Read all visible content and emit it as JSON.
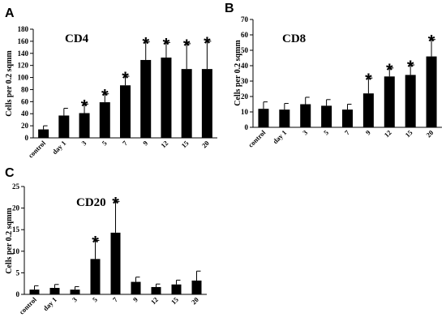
{
  "chart_data": [
    {
      "type": "bar",
      "panel": "A",
      "title": "CD4",
      "ylabel": "Cells per 0.2 sqmm",
      "xlabel": "",
      "ylim": [
        0,
        180
      ],
      "yticks": [
        0,
        20,
        40,
        60,
        80,
        100,
        120,
        140,
        160,
        180
      ],
      "categories": [
        "control",
        "day 1",
        "3",
        "5",
        "7",
        "9",
        "12",
        "15",
        "20"
      ],
      "values": [
        14,
        37,
        41,
        59,
        87,
        129,
        133,
        114,
        114
      ],
      "errors": [
        6,
        12,
        15,
        14,
        15,
        30,
        25,
        42,
        46
      ],
      "significant": [
        false,
        false,
        true,
        true,
        true,
        true,
        true,
        true,
        true
      ],
      "marker": "*",
      "color": "#000000"
    },
    {
      "type": "bar",
      "panel": "B",
      "title": "CD8",
      "ylabel": "Cells per 0.2 sqmm",
      "xlabel": "",
      "ylim": [
        0,
        70
      ],
      "yticks": [
        0,
        10,
        20,
        30,
        40,
        50,
        60,
        70
      ],
      "categories": [
        "control",
        "day 1",
        "3",
        "5",
        "7",
        "9",
        "12",
        "15",
        "20"
      ],
      "values": [
        12,
        11.5,
        15,
        14,
        11.5,
        22,
        33,
        34,
        46
      ],
      "errors": [
        4.5,
        4,
        4.5,
        4,
        3.5,
        10,
        5.5,
        6.5,
        11
      ],
      "significant": [
        false,
        false,
        false,
        false,
        false,
        true,
        true,
        true,
        true
      ],
      "marker": "*",
      "color": "#000000"
    },
    {
      "type": "bar",
      "panel": "C",
      "title": "CD20",
      "ylabel": "Cells per 0.2 sqmm",
      "xlabel": "",
      "ylim": [
        0,
        25
      ],
      "yticks": [
        0,
        5,
        10,
        15,
        20,
        25
      ],
      "categories": [
        "control",
        "day 1",
        "3",
        "5",
        "7",
        "9",
        "12",
        "15",
        "20"
      ],
      "values": [
        1.1,
        1.5,
        1.1,
        8.2,
        14.3,
        2.9,
        1.7,
        2.3,
        3.2
      ],
      "errors": [
        0.9,
        0.8,
        0.7,
        4.3,
        7.2,
        1.1,
        0.7,
        1.0,
        2.2
      ],
      "significant": [
        false,
        false,
        false,
        true,
        true,
        false,
        false,
        false,
        false
      ],
      "marker": "*",
      "color": "#000000"
    }
  ]
}
